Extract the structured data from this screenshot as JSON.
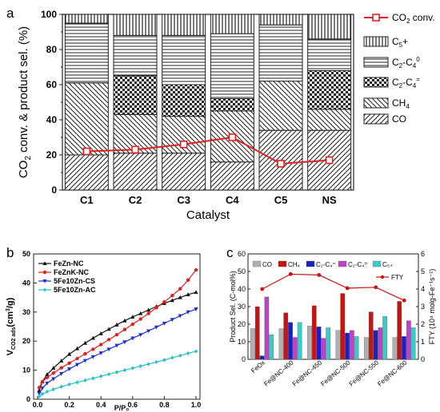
{
  "panels": {
    "a": {
      "letter": "a"
    },
    "b": {
      "letter": "b"
    },
    "c": {
      "letter": "c"
    }
  },
  "chart_data": [
    {
      "id": "a",
      "type": "bar",
      "stacked": true,
      "xlabel": "Catalyst",
      "ylabel": "CO2 conv. & product sel. (%)",
      "ylim": [
        0,
        100
      ],
      "yticks": [
        0,
        20,
        40,
        60,
        80,
        100
      ],
      "categories": [
        "C1",
        "C2",
        "C3",
        "C4",
        "C5",
        "NS"
      ],
      "series": [
        {
          "name": "CO",
          "pattern": "diag-fwd",
          "values": [
            20,
            21,
            21,
            16,
            34,
            34
          ]
        },
        {
          "name": "CH4",
          "pattern": "diag-back",
          "values": [
            41,
            22,
            21,
            29,
            28,
            12
          ]
        },
        {
          "name": "C2-C4=",
          "pattern": "checker",
          "values": [
            0,
            22,
            18,
            7,
            0,
            22
          ]
        },
        {
          "name": "C2-C4o",
          "pattern": "horizontal",
          "values": [
            34,
            23,
            28,
            37,
            32,
            18
          ]
        },
        {
          "name": "C5+",
          "pattern": "vertical",
          "values": [
            5,
            12,
            12,
            11,
            6,
            14
          ]
        }
      ],
      "line": {
        "name": "CO2 conv.",
        "color": "#e02020",
        "values": [
          22,
          23,
          26,
          30,
          15,
          17
        ]
      },
      "legend_position": "right",
      "legend": [
        {
          "key": "line",
          "base": "CO",
          "sub": "2",
          "tail": " conv."
        },
        {
          "key": "vertical",
          "base": "C",
          "sub": "5",
          "tail": "+"
        },
        {
          "key": "horizontal",
          "base": "C",
          "sub": "2",
          "tail": "-C",
          "sub2": "4",
          "sup": "0"
        },
        {
          "key": "checker",
          "base": "C",
          "sub": "2",
          "tail": "-C",
          "sub2": "4",
          "sup": "="
        },
        {
          "key": "diag-back",
          "base": "CH",
          "sub": "4",
          "tail": ""
        },
        {
          "key": "diag-fwd",
          "base": "CO",
          "sub": "",
          "tail": ""
        }
      ]
    },
    {
      "id": "b",
      "type": "line",
      "xlabel": "P/P₀",
      "ylabel": "V_CO2 ads (cm³/g)",
      "xlim": [
        0,
        1.0
      ],
      "ylim": [
        0,
        50
      ],
      "xticks": [
        0.0,
        0.2,
        0.4,
        0.6,
        0.8,
        1.0
      ],
      "yticks": [
        0,
        10,
        20,
        30,
        40,
        50
      ],
      "legend_position": "top-left",
      "series": [
        {
          "name": "FeZn-NC",
          "color": "#111111",
          "marker": "triangle",
          "x": [
            0.01,
            0.03,
            0.06,
            0.1,
            0.15,
            0.2,
            0.25,
            0.3,
            0.35,
            0.4,
            0.45,
            0.5,
            0.55,
            0.6,
            0.65,
            0.7,
            0.75,
            0.8,
            0.85,
            0.9,
            0.95,
            1.0
          ],
          "y": [
            3,
            6,
            8.5,
            10.7,
            13.2,
            15.5,
            17.4,
            19.3,
            21,
            22.6,
            24.1,
            25.6,
            27,
            28.3,
            29.5,
            30.7,
            31.9,
            33,
            34,
            35,
            36,
            36.8
          ]
        },
        {
          "name": "FeZnK-NC",
          "color": "#e02020",
          "marker": "circle",
          "x": [
            0.01,
            0.03,
            0.06,
            0.1,
            0.15,
            0.2,
            0.25,
            0.3,
            0.35,
            0.4,
            0.45,
            0.5,
            0.55,
            0.6,
            0.65,
            0.7,
            0.75,
            0.8,
            0.85,
            0.9,
            0.95,
            1.0
          ],
          "y": [
            4,
            6,
            7.5,
            9,
            10.8,
            12.4,
            14,
            15.6,
            17.2,
            18.8,
            20.5,
            22.2,
            24,
            25.8,
            27.6,
            29.5,
            31.5,
            33.5,
            35.7,
            38,
            41,
            44.5
          ]
        },
        {
          "name": "5Fe10Zn-CS",
          "color": "#1a2fd8",
          "marker": "triangle-down",
          "x": [
            0.01,
            0.03,
            0.06,
            0.1,
            0.15,
            0.2,
            0.25,
            0.3,
            0.35,
            0.4,
            0.45,
            0.5,
            0.55,
            0.6,
            0.65,
            0.7,
            0.75,
            0.8,
            0.85,
            0.9,
            0.95,
            1.0
          ],
          "y": [
            2,
            3.8,
            5.5,
            7,
            8.8,
            10.4,
            11.9,
            13.3,
            14.6,
            15.9,
            17.2,
            18.5,
            19.7,
            21,
            22.2,
            23.5,
            24.8,
            26.1,
            27.4,
            28.7,
            30,
            31
          ]
        },
        {
          "name": "5Fe10Zn-AC",
          "color": "#27c2c8",
          "marker": "diamond",
          "x": [
            0.01,
            0.03,
            0.06,
            0.1,
            0.15,
            0.2,
            0.25,
            0.3,
            0.35,
            0.4,
            0.45,
            0.5,
            0.55,
            0.6,
            0.65,
            0.7,
            0.75,
            0.8,
            0.85,
            0.9,
            0.95,
            1.0
          ],
          "y": [
            1,
            1.8,
            2.6,
            3.4,
            4.3,
            5.1,
            5.8,
            6.5,
            7.2,
            7.9,
            8.6,
            9.3,
            10,
            10.7,
            11.4,
            12.1,
            12.8,
            13.5,
            14.3,
            15,
            15.8,
            16.5
          ]
        }
      ]
    },
    {
      "id": "c",
      "type": "bar",
      "xlabel": "",
      "ylabel": "Product Sel. (C-mol%)",
      "ylabel_right": "FTY (10⁴ molg-Fe⁻¹s⁻¹)",
      "ylim": [
        0,
        60
      ],
      "yticks": [
        0,
        10,
        20,
        30,
        40,
        50,
        60
      ],
      "ylim_right": [
        0,
        6
      ],
      "yticks_right": [
        0,
        1,
        2,
        3,
        4,
        5,
        6
      ],
      "legend_position": "top",
      "categories": [
        "FeOx",
        "Fe@NC-400",
        "Fe@NC-450",
        "Fe@NC-500",
        "Fe@NC-550",
        "Fe@NC-600"
      ],
      "series": [
        {
          "name": "CO",
          "color": "#b0b0b0",
          "values": [
            17.5,
            17.5,
            19,
            16.5,
            12.5,
            12.5
          ]
        },
        {
          "name": "CH₄",
          "color": "#cc1111",
          "values": [
            30,
            26.5,
            30.5,
            37.5,
            27,
            33
          ]
        },
        {
          "name": "C₂-C₄⁼",
          "color": "#1a20c8",
          "values": [
            2,
            21,
            18.5,
            15,
            16.5,
            13
          ]
        },
        {
          "name": "C₂-C₄⁰",
          "color": "#c040c8",
          "values": [
            35.5,
            12.5,
            12,
            16.5,
            18,
            22
          ]
        },
        {
          "name": "C₅₊",
          "color": "#3ecbc8",
          "values": [
            14,
            21,
            18,
            13,
            24.5,
            18
          ]
        }
      ],
      "line": {
        "name": "FTY",
        "color": "#cc1111",
        "axis": "right",
        "values": [
          4.0,
          4.85,
          4.8,
          4.05,
          4.1,
          3.35
        ]
      },
      "legend": [
        "CO",
        "CH₄",
        "C₂-C₄⁼",
        "C₂-C₄⁰",
        "C₅₊"
      ],
      "line_legend": "FTY"
    }
  ]
}
